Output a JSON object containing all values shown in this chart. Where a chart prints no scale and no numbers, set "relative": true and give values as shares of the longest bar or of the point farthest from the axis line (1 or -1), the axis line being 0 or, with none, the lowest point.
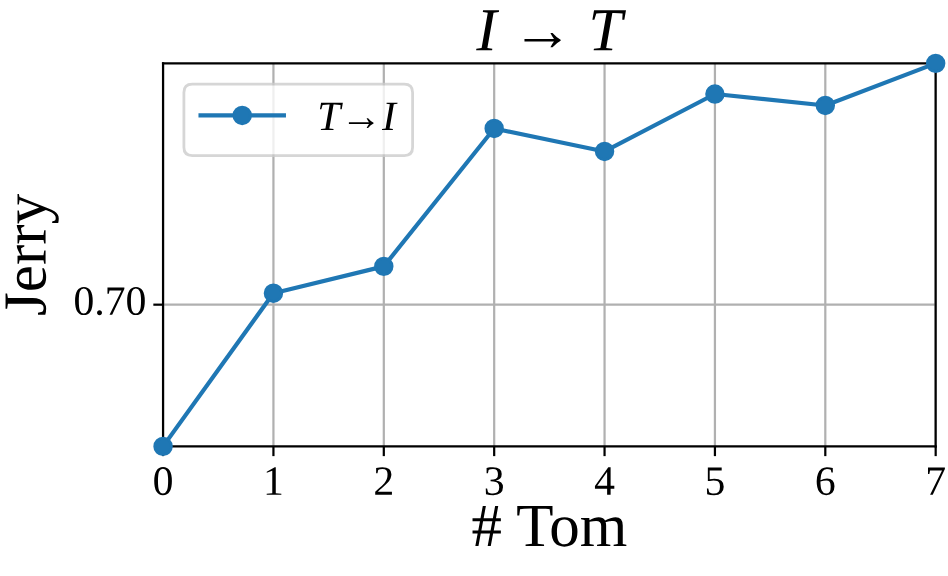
{
  "chart_data": {
    "type": "line",
    "title": "I → T",
    "xlabel": "# Tom",
    "ylabel": "Jerry",
    "x": [
      0,
      1,
      2,
      3,
      4,
      5,
      6,
      7
    ],
    "xlim": [
      0,
      7
    ],
    "xticks": [
      0,
      1,
      2,
      3,
      4,
      5,
      6,
      7
    ],
    "relative": true,
    "series": [
      {
        "name": "T→I",
        "color": "#1f77b4",
        "values": [
          0,
          0.4,
          0.47,
          0.83,
          0.77,
          0.92,
          0.89,
          1
        ]
      }
    ],
    "ref_lines": [
      {
        "axis": "y",
        "value": 0.37,
        "color": "#b0b0b0"
      }
    ],
    "annotations": [
      "0.70"
    ],
    "grid": "x",
    "legend": "top left",
    "marker": "circle",
    "line_style": "solid"
  }
}
